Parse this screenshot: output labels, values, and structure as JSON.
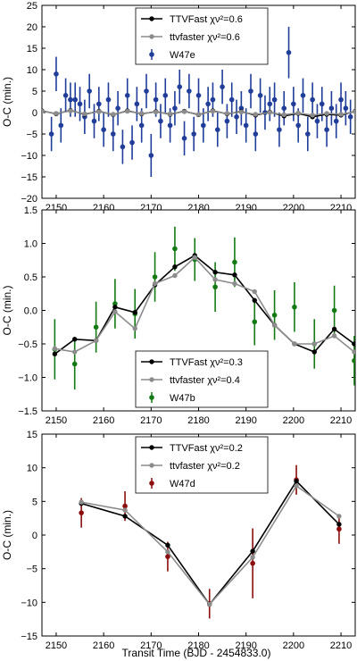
{
  "xlabel": "Transit Time (BJD - 2454833.0)",
  "chart_data": [
    {
      "type": "line",
      "ylabel": "O-C (min.)",
      "xlim": [
        2147,
        2213
      ],
      "ylim": [
        -20,
        25
      ],
      "xticks": [
        2150,
        2160,
        2170,
        2180,
        2190,
        2200,
        2210
      ],
      "xtick_labels": [
        "2150",
        "2160",
        "2170",
        "2180",
        "2190",
        "2200",
        "2210"
      ],
      "yticks": [
        -20,
        -15,
        -10,
        -5,
        0,
        5,
        10,
        15,
        20,
        25
      ],
      "ytick_labels": [
        "−20",
        "−15",
        "−10",
        "−5",
        "0",
        "5",
        "10",
        "15",
        "20",
        "25"
      ],
      "grid": false,
      "legend_position": "upper center",
      "series": [
        {
          "name": "TTVFast",
          "chi_label": "χν²=0.6",
          "kind": "line",
          "color": "#000000",
          "x": [
            2147,
            2150,
            2153,
            2156,
            2159,
            2162,
            2165,
            2168,
            2171,
            2174,
            2177,
            2180,
            2183,
            2186,
            2189,
            2192,
            2195,
            2198,
            2201,
            2204,
            2207,
            2210,
            2213
          ],
          "y": [
            0.4,
            -0.3,
            0.5,
            -0.4,
            0.3,
            -0.5,
            0.4,
            -0.3,
            0.2,
            -0.4,
            0.3,
            -0.5,
            0.4,
            -0.3,
            0.2,
            -0.6,
            0.1,
            -0.8,
            -0.2,
            -1.0,
            -0.4,
            -0.6,
            0.3
          ]
        },
        {
          "name": "ttvfaster",
          "chi_label": "χν²=0.6",
          "kind": "line",
          "color": "#8c8c8c",
          "x": [
            2147,
            2150,
            2153,
            2156,
            2159,
            2162,
            2165,
            2168,
            2171,
            2174,
            2177,
            2180,
            2183,
            2186,
            2189,
            2192,
            2195,
            2198,
            2201,
            2204,
            2207,
            2210,
            2213
          ],
          "y": [
            0.3,
            -0.2,
            0.4,
            -0.3,
            0.2,
            -0.4,
            0.3,
            -0.2,
            0.1,
            -0.3,
            0.2,
            -0.4,
            0.3,
            -0.2,
            0.1,
            -0.4,
            0.0,
            -0.5,
            -0.1,
            -0.6,
            -0.2,
            -0.4,
            0.2
          ]
        },
        {
          "name": "W47e",
          "kind": "errorbar",
          "color": "#1f3d99",
          "x": [
            2149,
            2150,
            2151,
            2152,
            2153,
            2154,
            2155,
            2156,
            2157,
            2158,
            2159,
            2160,
            2161,
            2162,
            2163,
            2164,
            2165,
            2166,
            2167,
            2168,
            2169,
            2170,
            2171,
            2172,
            2173,
            2174,
            2175,
            2176,
            2177,
            2178,
            2179,
            2180,
            2181,
            2182,
            2183,
            2184,
            2185,
            2186,
            2187,
            2188,
            2189,
            2190,
            2191,
            2192,
            2193,
            2194,
            2195,
            2196,
            2197,
            2198,
            2199,
            2200,
            2201,
            2202,
            2203,
            2204,
            2205,
            2206,
            2207,
            2208,
            2209,
            2210,
            2211,
            2212
          ],
          "y": [
            -5,
            9,
            -3,
            4,
            3,
            3,
            2,
            -1,
            5,
            -2,
            2,
            -4,
            3,
            -5,
            1,
            -8,
            4,
            -7,
            2,
            -3,
            5,
            -10,
            3,
            -2,
            4,
            -3,
            1,
            6,
            -6,
            5,
            -5,
            4,
            -3,
            2,
            3,
            -4,
            6,
            -2,
            3,
            -1,
            1,
            -3,
            5,
            -5,
            4,
            0,
            2,
            3,
            -4,
            1,
            14,
            2,
            -3,
            4,
            -5,
            3,
            -2,
            2,
            -4,
            1,
            -2,
            3,
            1,
            -1
          ],
          "yerr": [
            4,
            4,
            4,
            4,
            4,
            4,
            4,
            4,
            4,
            4,
            4,
            4,
            4,
            4,
            4,
            4,
            4,
            4,
            4,
            4,
            4,
            5,
            4,
            4,
            4,
            4,
            4,
            4,
            4,
            4,
            4,
            4,
            4,
            4,
            4,
            4,
            4,
            4,
            4,
            4,
            4,
            4,
            4,
            4,
            4,
            4,
            4,
            4,
            4,
            4,
            6,
            4,
            4,
            4,
            4,
            4,
            4,
            4,
            4,
            4,
            4,
            4,
            4,
            4
          ]
        }
      ]
    },
    {
      "type": "line",
      "ylabel": "O-C (min.)",
      "xlim": [
        2147,
        2213
      ],
      "ylim": [
        -1.5,
        1.5
      ],
      "xticks": [
        2150,
        2160,
        2170,
        2180,
        2190,
        2200,
        2210
      ],
      "xtick_labels": [
        "2150",
        "2160",
        "2170",
        "2180",
        "2190",
        "2200",
        "2210"
      ],
      "yticks": [
        -1.5,
        -1.0,
        -0.5,
        0.0,
        0.5,
        1.0,
        1.5
      ],
      "ytick_labels": [
        "−1.5",
        "−1.0",
        "−0.5",
        "0.0",
        "0.5",
        "1.0",
        "1.5"
      ],
      "grid": false,
      "legend_position": "lower center",
      "series": [
        {
          "name": "TTVFast",
          "chi_label": "χν²=0.3",
          "kind": "line",
          "color": "#000000",
          "x": [
            2149.7,
            2153.9,
            2158.4,
            2162.4,
            2166.6,
            2170.8,
            2175.0,
            2179.2,
            2183.5,
            2187.6,
            2191.8,
            2196.0,
            2200.2,
            2204.4,
            2208.6,
            2212.8
          ],
          "y": [
            -0.65,
            -0.43,
            -0.45,
            0.05,
            -0.03,
            0.38,
            0.65,
            0.82,
            0.57,
            0.53,
            0.15,
            -0.22,
            -0.5,
            -0.62,
            -0.28,
            -0.5
          ]
        },
        {
          "name": "ttvfaster",
          "chi_label": "χν²=0.4",
          "kind": "line",
          "color": "#8c8c8c",
          "x": [
            2149.7,
            2153.9,
            2158.4,
            2162.4,
            2166.6,
            2170.8,
            2175.0,
            2179.2,
            2183.5,
            2187.6,
            2191.8,
            2196.0,
            2200.2,
            2204.4,
            2208.6,
            2212.8
          ],
          "y": [
            -0.57,
            -0.62,
            -0.45,
            -0.02,
            -0.27,
            0.4,
            0.52,
            0.79,
            0.46,
            0.4,
            0.28,
            -0.22,
            -0.5,
            -0.5,
            -0.38,
            -0.62
          ]
        },
        {
          "name": "W47b",
          "kind": "errorbar",
          "color": "#137a13",
          "x": [
            2149.7,
            2153.9,
            2158.4,
            2162.4,
            2166.6,
            2170.8,
            2175.0,
            2179.2,
            2183.5,
            2187.6,
            2191.8,
            2196.0,
            2200.2,
            2204.4,
            2208.6,
            2212.8
          ],
          "y": [
            -0.58,
            -0.8,
            -0.25,
            0.1,
            -0.05,
            0.5,
            0.92,
            0.76,
            0.35,
            0.72,
            -0.17,
            -0.07,
            0.05,
            -0.5,
            0.0,
            -0.75
          ],
          "yerr": [
            0.45,
            0.38,
            0.38,
            0.37,
            0.37,
            0.37,
            0.33,
            0.32,
            0.37,
            0.37,
            0.35,
            0.37,
            0.37,
            0.37,
            0.37,
            0.37
          ]
        }
      ]
    },
    {
      "type": "line",
      "ylabel": "O-C (min.)",
      "xlim": [
        2147,
        2213
      ],
      "ylim": [
        -15,
        15
      ],
      "xticks": [
        2150,
        2160,
        2170,
        2180,
        2190,
        2200,
        2210
      ],
      "xtick_labels": [
        "2150",
        "2160",
        "2170",
        "2180",
        "2190",
        "2200",
        "2210"
      ],
      "yticks": [
        -15,
        -10,
        -5,
        0,
        5,
        10,
        15
      ],
      "ytick_labels": [
        "−15",
        "−10",
        "−5",
        "0",
        "5",
        "10",
        "15"
      ],
      "grid": false,
      "legend_position": "upper center",
      "series": [
        {
          "name": "TTVFast",
          "chi_label": "χν²=0.2",
          "kind": "line",
          "color": "#000000",
          "x": [
            2155.3,
            2164.5,
            2173.5,
            2182.3,
            2191.4,
            2200.6,
            2209.6
          ],
          "y": [
            4.7,
            2.8,
            -1.5,
            -10.3,
            -2.4,
            8.0,
            1.6
          ]
        },
        {
          "name": "ttvfaster",
          "chi_label": "χν²=0.2",
          "kind": "line",
          "color": "#8c8c8c",
          "x": [
            2155.3,
            2164.5,
            2173.5,
            2182.3,
            2191.4,
            2200.6,
            2209.6
          ],
          "y": [
            4.9,
            3.7,
            -2.5,
            -10.3,
            -3.3,
            7.3,
            2.8
          ]
        },
        {
          "name": "W47d",
          "kind": "errorbar",
          "color": "#8b0d0d",
          "x": [
            2155.3,
            2164.5,
            2173.5,
            2182.3,
            2191.4,
            2200.6,
            2209.6
          ],
          "y": [
            3.3,
            4.3,
            -3.2,
            -10.2,
            -4.2,
            8.2,
            0.9
          ],
          "yerr": [
            2.2,
            2.2,
            2.2,
            2.2,
            5.2,
            2.2,
            2.2
          ]
        }
      ]
    }
  ]
}
